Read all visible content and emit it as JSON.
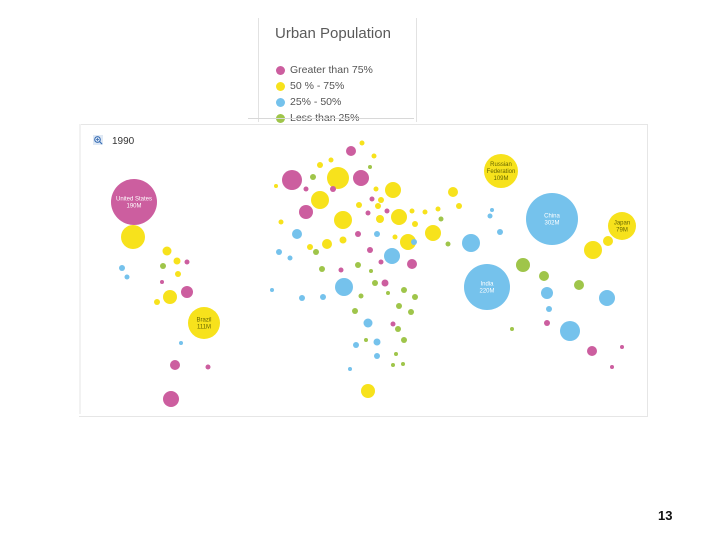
{
  "legend": {
    "title": "Urban Population",
    "items": [
      {
        "label": "Greater than 75%",
        "color": "#cc5e9f"
      },
      {
        "label": "50 % - 75%",
        "color": "#f7e21c"
      },
      {
        "label": "25% - 50%",
        "color": "#75c2ec"
      },
      {
        "label": "Less than 25%",
        "color": "#9fc54a"
      }
    ]
  },
  "map": {
    "year": "1990",
    "zoom_icon": "zoom-in-icon"
  },
  "page_number": "13",
  "chart_data": {
    "type": "scatter",
    "title": "Urban Population",
    "year": "1990",
    "categories": [
      "Greater than 75%",
      "50 % - 75%",
      "25% - 50%",
      "Less than 25%"
    ],
    "colors": {
      "Greater than 75%": "#cc5e9f",
      "50 % - 75%": "#f7e21c",
      "25% - 50%": "#75c2ec",
      "Less than 25%": "#9fc54a"
    },
    "labeled_bubbles": [
      {
        "country": "United States",
        "urban_population": "190M",
        "category": "Greater than 75%"
      },
      {
        "country": "Russian Federation",
        "urban_population": "109M",
        "category": "50 % - 75%"
      },
      {
        "country": "China",
        "urban_population": "302M",
        "category": "25% - 50%"
      },
      {
        "country": "Japan",
        "urban_population": "79M",
        "category": "50 % - 75%"
      },
      {
        "country": "India",
        "urban_population": "220M",
        "category": "25% - 50%"
      },
      {
        "country": "Brazil",
        "urban_population": "111M",
        "category": "50 % - 75%"
      }
    ]
  }
}
